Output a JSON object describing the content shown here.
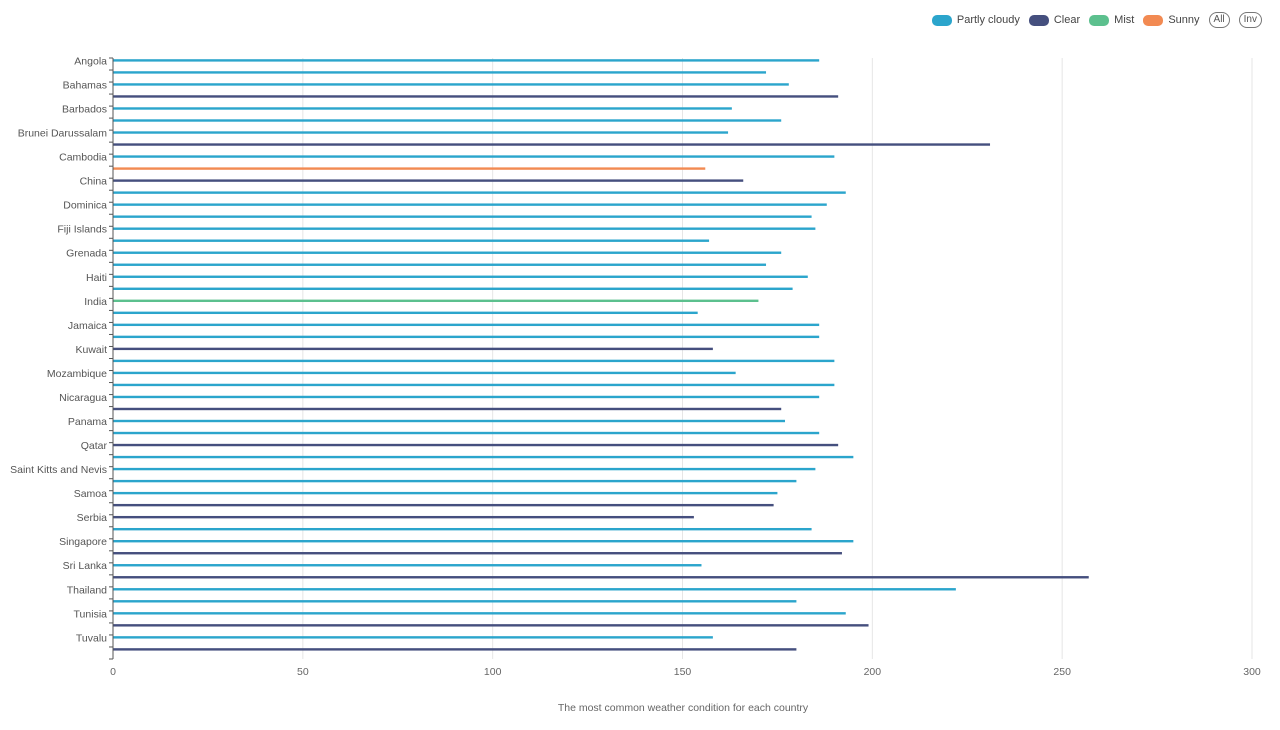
{
  "legend": {
    "items": [
      {
        "name": "Partly cloudy",
        "color": "#2ba5cc"
      },
      {
        "name": "Clear",
        "color": "#454f7e"
      },
      {
        "name": "Mist",
        "color": "#5cc08e"
      },
      {
        "name": "Sunny",
        "color": "#f28a52"
      }
    ],
    "all_label": "All",
    "inv_label": "Inv"
  },
  "chart_data": {
    "type": "bar",
    "orientation": "horizontal",
    "xlabel": "The most common weather condition for each country",
    "xlim": [
      0,
      300
    ],
    "xticks": [
      0,
      50,
      100,
      150,
      200,
      250,
      300
    ],
    "grid": true,
    "legend_position": "top-right",
    "category_labels": [
      "Angola",
      "Bahamas",
      "Barbados",
      "Brunei Darussalam",
      "Cambodia",
      "China",
      "Dominica",
      "Fiji Islands",
      "Grenada",
      "Haiti",
      "India",
      "Jamaica",
      "Kuwait",
      "Mozambique",
      "Nicaragua",
      "Panama",
      "Qatar",
      "Saint Kitts and Nevis",
      "Samoa",
      "Serbia",
      "Singapore",
      "Sri Lanka",
      "Thailand",
      "Tunisia",
      "Tuvalu"
    ],
    "bars": [
      {
        "condition": "Partly cloudy",
        "value": 186
      },
      {
        "condition": "Partly cloudy",
        "value": 172
      },
      {
        "condition": "Partly cloudy",
        "value": 178
      },
      {
        "condition": "Clear",
        "value": 191
      },
      {
        "condition": "Partly cloudy",
        "value": 163
      },
      {
        "condition": "Partly cloudy",
        "value": 176
      },
      {
        "condition": "Partly cloudy",
        "value": 162
      },
      {
        "condition": "Clear",
        "value": 231
      },
      {
        "condition": "Partly cloudy",
        "value": 190
      },
      {
        "condition": "Sunny",
        "value": 156
      },
      {
        "condition": "Clear",
        "value": 166
      },
      {
        "condition": "Partly cloudy",
        "value": 193
      },
      {
        "condition": "Partly cloudy",
        "value": 188
      },
      {
        "condition": "Partly cloudy",
        "value": 184
      },
      {
        "condition": "Partly cloudy",
        "value": 185
      },
      {
        "condition": "Partly cloudy",
        "value": 157
      },
      {
        "condition": "Partly cloudy",
        "value": 176
      },
      {
        "condition": "Partly cloudy",
        "value": 172
      },
      {
        "condition": "Partly cloudy",
        "value": 183
      },
      {
        "condition": "Partly cloudy",
        "value": 179
      },
      {
        "condition": "Mist",
        "value": 170
      },
      {
        "condition": "Partly cloudy",
        "value": 154
      },
      {
        "condition": "Partly cloudy",
        "value": 186
      },
      {
        "condition": "Partly cloudy",
        "value": 186
      },
      {
        "condition": "Clear",
        "value": 158
      },
      {
        "condition": "Partly cloudy",
        "value": 190
      },
      {
        "condition": "Partly cloudy",
        "value": 164
      },
      {
        "condition": "Partly cloudy",
        "value": 190
      },
      {
        "condition": "Partly cloudy",
        "value": 186
      },
      {
        "condition": "Clear",
        "value": 176
      },
      {
        "condition": "Partly cloudy",
        "value": 177
      },
      {
        "condition": "Partly cloudy",
        "value": 186
      },
      {
        "condition": "Clear",
        "value": 191
      },
      {
        "condition": "Partly cloudy",
        "value": 195
      },
      {
        "condition": "Partly cloudy",
        "value": 185
      },
      {
        "condition": "Partly cloudy",
        "value": 180
      },
      {
        "condition": "Partly cloudy",
        "value": 175
      },
      {
        "condition": "Clear",
        "value": 174
      },
      {
        "condition": "Clear",
        "value": 153
      },
      {
        "condition": "Partly cloudy",
        "value": 184
      },
      {
        "condition": "Partly cloudy",
        "value": 195
      },
      {
        "condition": "Clear",
        "value": 192
      },
      {
        "condition": "Partly cloudy",
        "value": 155
      },
      {
        "condition": "Clear",
        "value": 257
      },
      {
        "condition": "Partly cloudy",
        "value": 222
      },
      {
        "condition": "Partly cloudy",
        "value": 180
      },
      {
        "condition": "Partly cloudy",
        "value": 193
      },
      {
        "condition": "Clear",
        "value": 199
      },
      {
        "condition": "Partly cloudy",
        "value": 158
      },
      {
        "condition": "Clear",
        "value": 180
      }
    ]
  }
}
